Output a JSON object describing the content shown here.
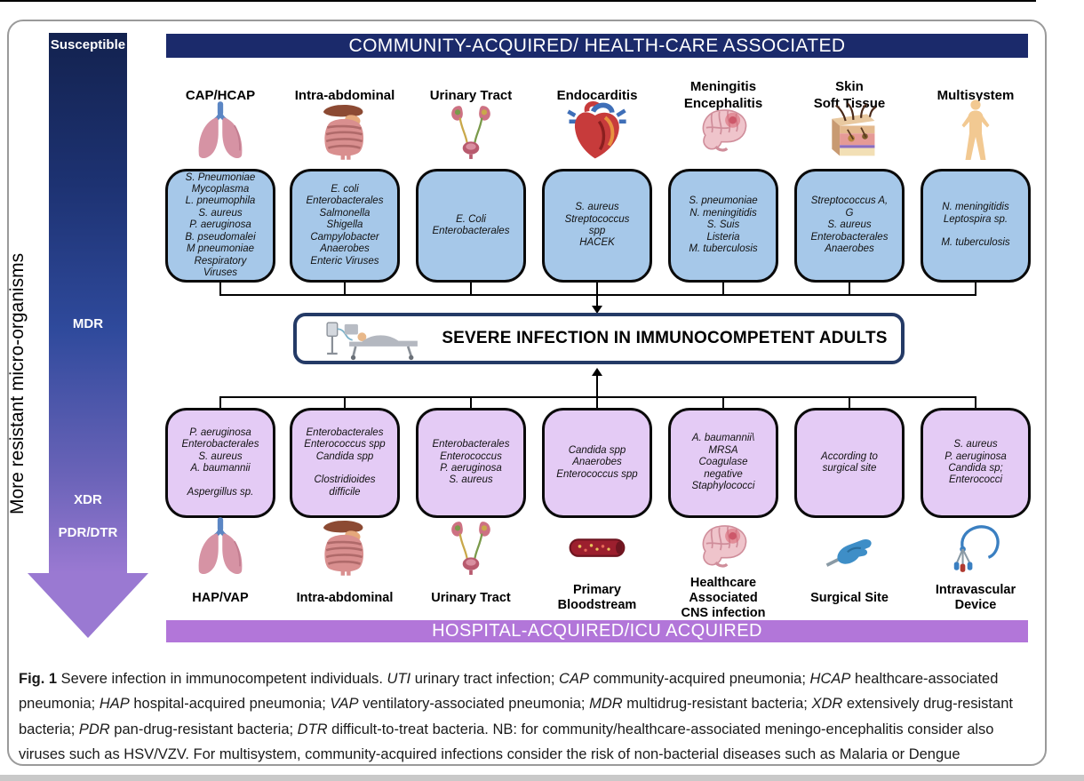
{
  "figure": {
    "top_banner": "COMMUNITY-ACQUIRED/ HEALTH-CARE ASSOCIATED",
    "bottom_banner": "HOSPITAL-ACQUIRED/ICU ACQUIRED",
    "center_label": "SEVERE INFECTION IN IMMUNOCOMPETENT ADULTS",
    "arrow": {
      "labels": [
        "Susceptible",
        "MDR",
        "XDR",
        "PDR/DTR"
      ],
      "side_label": "More resistant micro-organisms"
    },
    "columns": [
      {
        "top_label": [
          "CAP/HCAP"
        ],
        "top_icon": "lungs-icon",
        "community_organisms": [
          "S. Pneumoniae",
          "Mycoplasma",
          "L. pneumophila",
          "S. aureus",
          "P. aeruginosa",
          "B. pseudomalei",
          "M pneumoniae",
          "Respiratory",
          "Viruses"
        ],
        "hospital_organisms": [
          "P. aeruginosa",
          "Enterobacterales",
          "S. aureus",
          "A. baumannii",
          "",
          "Aspergillus sp."
        ],
        "bottom_icon": "lungs-icon",
        "bottom_label": [
          "HAP/VAP"
        ]
      },
      {
        "top_label": [
          "Intra-abdominal"
        ],
        "top_icon": "digestive-system-icon",
        "community_organisms": [
          "E. coli",
          "Enterobacterales",
          "Salmonella",
          "Shigella",
          "Campylobacter",
          "Anaerobes",
          "Enteric Viruses"
        ],
        "hospital_organisms": [
          "Enterobacterales",
          "Enterococcus spp",
          "Candida spp",
          "",
          "Clostridioides",
          "difficile"
        ],
        "bottom_icon": "digestive-system-icon",
        "bottom_label": [
          "Intra-abdominal"
        ]
      },
      {
        "top_label": [
          "Urinary Tract"
        ],
        "top_icon": "urinary-tract-icon",
        "community_organisms": [
          "E. Coli",
          "Enterobacterales"
        ],
        "hospital_organisms": [
          "Enterobacterales",
          "Enterococcus",
          "P. aeruginosa",
          "S. aureus"
        ],
        "bottom_icon": "urinary-tract-icon",
        "bottom_label": [
          "Urinary Tract"
        ]
      },
      {
        "top_label": [
          "Endocarditis"
        ],
        "top_icon": "heart-icon",
        "community_organisms": [
          "S. aureus",
          "Streptococcus",
          "spp",
          "HACEK"
        ],
        "hospital_organisms": [
          "Candida spp",
          "Anaerobes",
          "Enterococcus spp"
        ],
        "bottom_icon": "blood-vessel-icon",
        "bottom_label": [
          "Primary",
          "Bloodstream"
        ]
      },
      {
        "top_label": [
          "Meningitis",
          "Encephalitis"
        ],
        "top_icon": "brain-icon",
        "community_organisms": [
          "S. pneumoniae",
          "N. meningitidis",
          "S. Suis",
          "Listeria",
          "M. tuberculosis"
        ],
        "hospital_organisms": [
          "A. baumannii\\",
          "MRSA",
          "Coagulase",
          "negative",
          "Staphylococci"
        ],
        "bottom_icon": "brain-icon",
        "bottom_label": [
          "Healthcare",
          "Associated",
          "CNS infection"
        ]
      },
      {
        "top_label": [
          "Skin",
          "Soft Tissue"
        ],
        "top_icon": "skin-icon",
        "community_organisms": [
          "Streptococcus A,",
          "G",
          "S. aureus",
          "Enterobacterales",
          "Anaerobes"
        ],
        "hospital_organisms": [
          "According to",
          "surgical site"
        ],
        "bottom_icon": "surgical-hand-icon",
        "bottom_label": [
          "Surgical Site"
        ]
      },
      {
        "top_label": [
          "Multisystem"
        ],
        "top_icon": "human-body-icon",
        "community_organisms": [
          "N. meningitidis",
          "Leptospira sp.",
          "",
          "M. tuberculosis"
        ],
        "hospital_organisms": [
          "S. aureus",
          "P. aeruginosa",
          "Candida sp;",
          "Enterococci"
        ],
        "bottom_icon": "intravascular-device-icon",
        "bottom_label": [
          "Intravascular",
          "Device"
        ]
      }
    ],
    "caption_segments": [
      {
        "text": "Fig. 1",
        "bold": true
      },
      {
        "text": "  Severe infection in immunocompetent individuals. "
      },
      {
        "text": "UTI",
        "italic": true
      },
      {
        "text": " urinary tract infection; "
      },
      {
        "text": "CAP",
        "italic": true
      },
      {
        "text": " community-acquired pneumonia; "
      },
      {
        "text": "HCAP",
        "italic": true
      },
      {
        "text": " healthcare-associated pneumonia; "
      },
      {
        "text": "HAP",
        "italic": true
      },
      {
        "text": " hospital-acquired pneumonia; "
      },
      {
        "text": "VAP",
        "italic": true
      },
      {
        "text": " ventilatory-associated pneumonia; "
      },
      {
        "text": "MDR",
        "italic": true
      },
      {
        "text": " multidrug-resistant bacteria; "
      },
      {
        "text": "XDR",
        "italic": true
      },
      {
        "text": " extensively drug-resistant bacteria; "
      },
      {
        "text": "PDR",
        "italic": true
      },
      {
        "text": " pan-drug-resistant bacteria; "
      },
      {
        "text": "DTR",
        "italic": true
      },
      {
        "text": " difficult-to-treat bacteria. NB: for community/healthcare-associated meningo-encephalitis consider also viruses such as HSV/VZV. For multisystem, community-acquired infections consider the risk of non-bacterial diseases such as Malaria or Dengue"
      }
    ]
  },
  "colors": {
    "header_navy": "#1b2a6b",
    "hospital_purple": "#b276d9",
    "community_box_fill": "#a6c8e9",
    "hospital_box_fill": "#e4cbf5",
    "center_box_border": "#243a66",
    "arrow_gradient_top": "#13224f",
    "arrow_gradient_bottom": "#9a79d2"
  }
}
